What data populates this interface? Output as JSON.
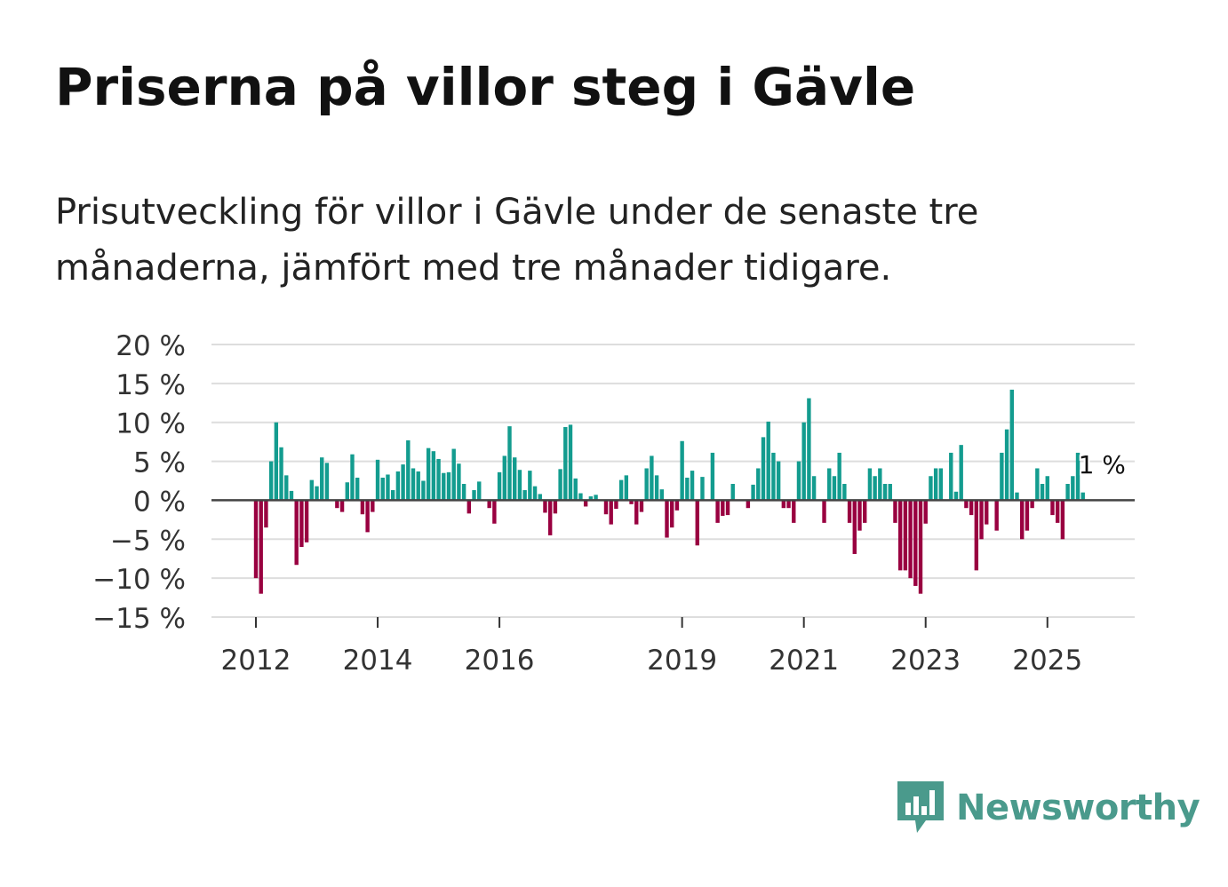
{
  "title": "Priserna på villor steg i Gävle",
  "subtitle": "Prisutveckling för villor i Gävle under de senaste tre månaderna, jämfört med tre månader tidigare.",
  "brand": {
    "name": "Newsworthy",
    "color": "#4a9a8c"
  },
  "colors": {
    "positive": "#139c8f",
    "negative": "#990040",
    "grid": "#dddddd",
    "zero_line": "#444444"
  },
  "chart_data": {
    "type": "bar",
    "title": "Priserna på villor steg i Gävle",
    "xlabel": "",
    "ylabel": "",
    "ylim": [
      -15,
      20
    ],
    "yticks": [
      20,
      15,
      10,
      5,
      0,
      -5,
      -10,
      -15
    ],
    "ytick_labels": [
      "20 %",
      "15 %",
      "10 %",
      "5 %",
      "0 %",
      "−5 %",
      "−10 %",
      "−15 %"
    ],
    "grid": true,
    "x_start": "2012-01",
    "frequency": "monthly",
    "xtick_labels": [
      "2012",
      "2014",
      "2016",
      "2019",
      "2021",
      "2023",
      "2025"
    ],
    "xtick_index": [
      0,
      24,
      48,
      84,
      108,
      132,
      156
    ],
    "values": [
      -10,
      -12,
      -3.5,
      5,
      10,
      6.8,
      3.2,
      1.2,
      -8.3,
      -6,
      -5.4,
      2.6,
      1.8,
      5.5,
      4.8,
      0,
      -1,
      -1.5,
      2.3,
      5.9,
      2.9,
      -1.8,
      -4.1,
      -1.5,
      5.2,
      2.9,
      3.3,
      1.3,
      3.7,
      4.6,
      7.7,
      4.1,
      3.7,
      2.5,
      6.7,
      6.3,
      5.3,
      3.5,
      3.6,
      6.6,
      4.7,
      2.1,
      -1.7,
      1.3,
      2.4,
      0,
      -1,
      -3,
      3.6,
      5.7,
      9.5,
      5.5,
      3.9,
      1.3,
      3.8,
      1.8,
      0.8,
      -1.6,
      -4.5,
      -1.7,
      4,
      9.4,
      9.7,
      2.8,
      0.9,
      -0.8,
      0.5,
      0.7,
      0,
      -1.8,
      -3.1,
      -1.1,
      2.6,
      3.2,
      -0.5,
      -3.1,
      -1.5,
      4.1,
      5.7,
      3.2,
      1.4,
      -4.8,
      -3.5,
      -1.3,
      7.6,
      2.9,
      3.8,
      -5.8,
      3,
      0,
      6.1,
      -2.9,
      -2,
      -1.9,
      2.1,
      0,
      0,
      -1,
      2,
      4.1,
      8.1,
      10.1,
      6.1,
      5,
      -1,
      -1,
      -2.9,
      5,
      10,
      13.1,
      3.1,
      0,
      -2.9,
      4.1,
      3.1,
      6.1,
      2.1,
      -2.9,
      -6.9,
      -3.9,
      -2.9,
      4.1,
      3.1,
      4.1,
      2.1,
      2.1,
      -2.9,
      -9,
      -9,
      -10,
      -11,
      -12,
      -3,
      3.1,
      4.1,
      4.1,
      0,
      6.1,
      1.1,
      7.1,
      -1,
      -1.9,
      -9,
      -5,
      -3.1,
      0,
      -3.9,
      6.1,
      9.1,
      14.2,
      1,
      -5,
      -3.9,
      -1,
      4.1,
      2.1,
      3.1,
      -1.9,
      -2.9,
      -5,
      2.1,
      3.1,
      6.1,
      1
    ],
    "annotation": {
      "text": "1 %",
      "index": 167
    }
  }
}
